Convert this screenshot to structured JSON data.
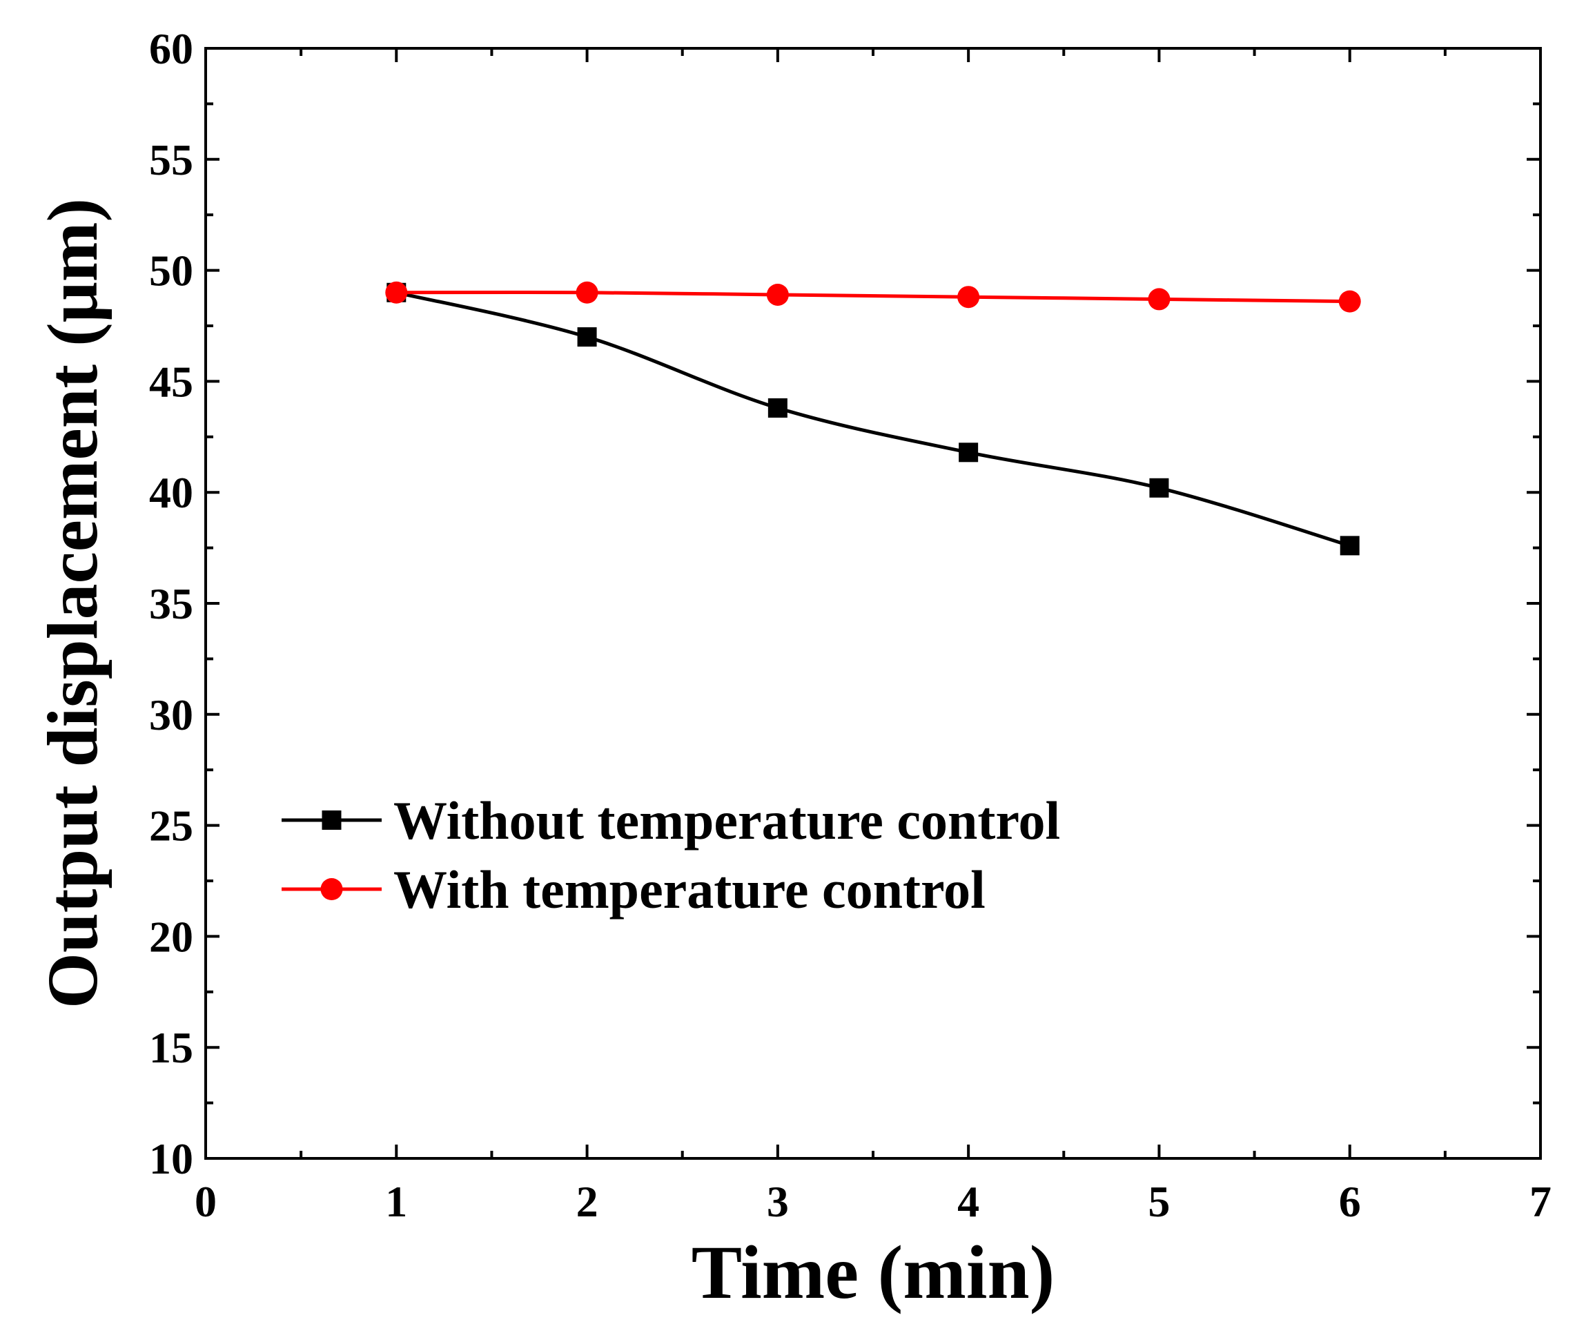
{
  "chart_data": {
    "type": "line",
    "title": "",
    "xlabel": "Time (min)",
    "ylabel": "Output displacement (μm)",
    "xlim": [
      0,
      7
    ],
    "ylim": [
      10,
      60
    ],
    "xticks": [
      0,
      1,
      2,
      3,
      4,
      5,
      6,
      7
    ],
    "xtick_labels": [
      "0",
      "1",
      "2",
      "3",
      "4",
      "5",
      "6",
      "7"
    ],
    "yticks": [
      10,
      15,
      20,
      25,
      30,
      35,
      40,
      45,
      50,
      55,
      60
    ],
    "ytick_labels": [
      "10",
      "15",
      "20",
      "25",
      "30",
      "35",
      "40",
      "45",
      "50",
      "55",
      "60"
    ],
    "grid": false,
    "legend_position": "lower-left",
    "x": [
      1,
      2,
      3,
      4,
      5,
      6
    ],
    "series": [
      {
        "name": "Without temperature control",
        "color": "#000000",
        "marker": "square",
        "values": [
          49.0,
          47.0,
          43.8,
          41.8,
          40.2,
          37.6
        ]
      },
      {
        "name": "With temperature control",
        "color": "#ff0000",
        "marker": "circle",
        "values": [
          49.0,
          49.0,
          48.9,
          48.8,
          48.7,
          48.6
        ]
      }
    ]
  }
}
